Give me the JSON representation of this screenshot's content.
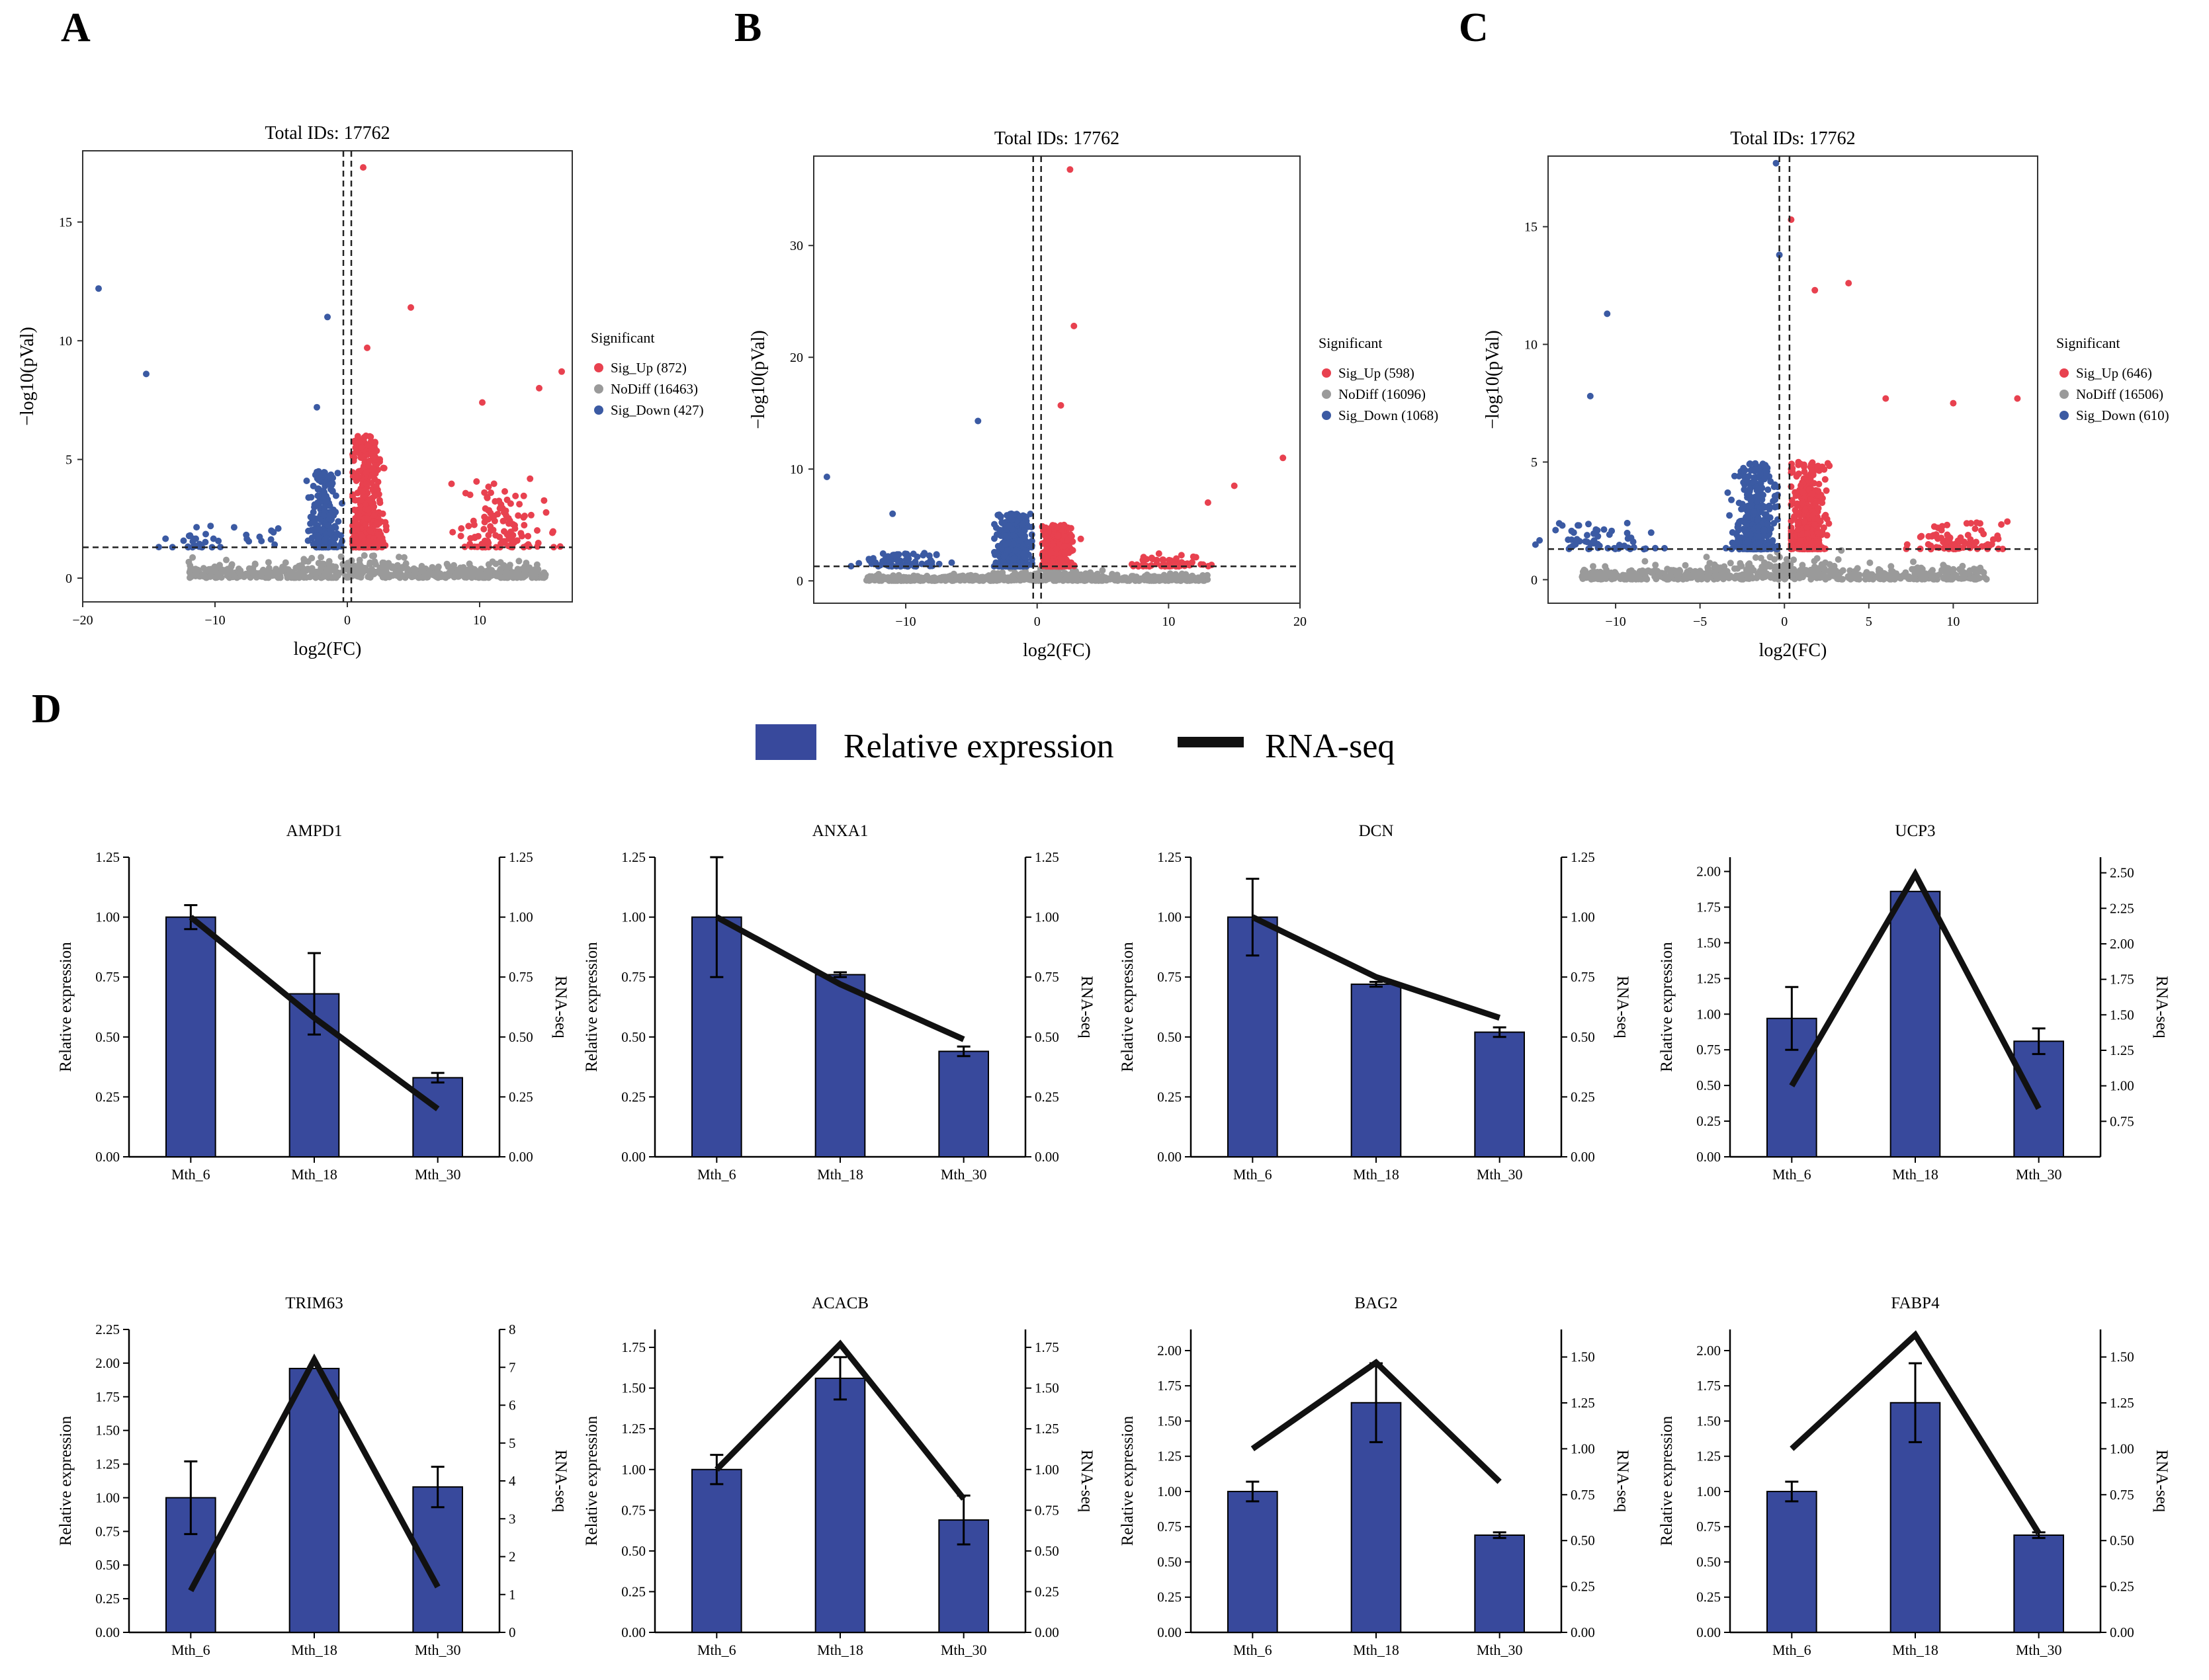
{
  "colors": {
    "sig_up": "#e8414f",
    "nodiff": "#9a9a9a",
    "sig_down": "#3b5aa3",
    "bar": "#38499c",
    "line": "#111111"
  },
  "panel_letters": [
    "A",
    "B",
    "C",
    "D"
  ],
  "legend_d": {
    "bar_label": "Relative expression",
    "line_label": "RNA-seq"
  },
  "chart_data": [
    {
      "id": "A",
      "type": "scatter",
      "title": "Total IDs: 17762",
      "xlabel": "log2(FC)",
      "ylabel": "−log10(pVal)",
      "xlim": [
        -20,
        17
      ],
      "ylim": [
        -1,
        18
      ],
      "xticks": [
        -20,
        -10,
        0,
        10
      ],
      "xtick_labels": [
        "−20",
        "−10",
        "0",
        "10"
      ],
      "yticks": [
        0,
        5,
        10,
        15
      ],
      "vlines": [
        -0.3,
        0.3
      ],
      "hline": 1.3,
      "legend_title": "Significant",
      "legend": [
        {
          "label": "Sig_Up (872)",
          "group": "up"
        },
        {
          "label": "NoDiff (16463)",
          "group": "nodiff"
        },
        {
          "label": "Sig_Down (427)",
          "group": "down"
        }
      ],
      "clusters": {
        "up": [
          [
            1.5,
            6,
            520
          ],
          [
            11,
            4.2,
            100
          ],
          [
            14,
            4,
            20
          ]
        ],
        "down": [
          [
            -1.8,
            4.5,
            250
          ],
          [
            -12,
            2.2,
            25
          ],
          [
            -7,
            2.5,
            12
          ]
        ],
        "nodiff_x": [
          -12,
          15
        ]
      },
      "outliers": [
        {
          "x": 1.2,
          "y": 17.3,
          "g": "up"
        },
        {
          "x": 4.8,
          "y": 11.4,
          "g": "up"
        },
        {
          "x": 1.5,
          "y": 9.7,
          "g": "up"
        },
        {
          "x": 16.2,
          "y": 8.7,
          "g": "up"
        },
        {
          "x": 14.5,
          "y": 8.0,
          "g": "up"
        },
        {
          "x": 10.2,
          "y": 7.4,
          "g": "up"
        },
        {
          "x": -18.8,
          "y": 12.2,
          "g": "down"
        },
        {
          "x": -15.2,
          "y": 8.6,
          "g": "down"
        },
        {
          "x": -1.5,
          "y": 11.0,
          "g": "down"
        },
        {
          "x": -2.3,
          "y": 7.2,
          "g": "down"
        }
      ]
    },
    {
      "id": "B",
      "type": "scatter",
      "title": "Total IDs: 17762",
      "xlabel": "log2(FC)",
      "ylabel": "−log10(pVal)",
      "xlim": [
        -17,
        20
      ],
      "ylim": [
        -2,
        38
      ],
      "xticks": [
        -10,
        0,
        10,
        20
      ],
      "xtick_labels": [
        "−10",
        "0",
        "10",
        "20"
      ],
      "yticks": [
        0,
        10,
        20,
        30
      ],
      "vlines": [
        -0.3,
        0.3
      ],
      "hline": 1.3,
      "legend_title": "Significant",
      "legend": [
        {
          "label": "Sig_Up (598)",
          "group": "up"
        },
        {
          "label": "NoDiff (16096)",
          "group": "nodiff"
        },
        {
          "label": "Sig_Down (1068)",
          "group": "down"
        }
      ],
      "clusters": {
        "up": [
          [
            1.5,
            5,
            350
          ],
          [
            10,
            2.5,
            60
          ]
        ],
        "down": [
          [
            -1.8,
            6,
            620
          ],
          [
            -10,
            2.5,
            80
          ]
        ],
        "nodiff_x": [
          -13,
          13
        ]
      },
      "outliers": [
        {
          "x": 2.5,
          "y": 36.8,
          "g": "up"
        },
        {
          "x": 2.8,
          "y": 22.8,
          "g": "up"
        },
        {
          "x": 1.8,
          "y": 15.7,
          "g": "up"
        },
        {
          "x": 18.7,
          "y": 11.0,
          "g": "up"
        },
        {
          "x": 15.0,
          "y": 8.5,
          "g": "up"
        },
        {
          "x": 13.0,
          "y": 7.0,
          "g": "up"
        },
        {
          "x": -4.5,
          "y": 14.3,
          "g": "down"
        },
        {
          "x": -16.0,
          "y": 9.3,
          "g": "down"
        },
        {
          "x": -11.0,
          "y": 6.0,
          "g": "down"
        }
      ]
    },
    {
      "id": "C",
      "type": "scatter",
      "title": "Total IDs: 17762",
      "xlabel": "log2(FC)",
      "ylabel": "−log10(pVal)",
      "xlim": [
        -14,
        15
      ],
      "ylim": [
        -1,
        18
      ],
      "xticks": [
        -10,
        -5,
        0,
        5,
        10
      ],
      "xtick_labels": [
        "−10",
        "−5",
        "0",
        "5",
        "10"
      ],
      "yticks": [
        0,
        5,
        10,
        15
      ],
      "vlines": [
        -0.3,
        0.3
      ],
      "hline": 1.3,
      "legend_title": "Significant",
      "legend": [
        {
          "label": "Sig_Up (646)",
          "group": "up"
        },
        {
          "label": "NoDiff (16506)",
          "group": "nodiff"
        },
        {
          "label": "Sig_Down (610)",
          "group": "down"
        }
      ],
      "clusters": {
        "up": [
          [
            1.3,
            5,
            380
          ],
          [
            10.5,
            2.5,
            80
          ]
        ],
        "down": [
          [
            -1.8,
            5,
            380
          ],
          [
            -11,
            2.5,
            60
          ]
        ],
        "nodiff_x": [
          -12,
          12
        ]
      },
      "outliers": [
        {
          "x": -0.5,
          "y": 17.7,
          "g": "down"
        },
        {
          "x": -0.3,
          "y": 13.8,
          "g": "down"
        },
        {
          "x": -10.5,
          "y": 11.3,
          "g": "down"
        },
        {
          "x": -11.5,
          "y": 7.8,
          "g": "down"
        },
        {
          "x": 0.4,
          "y": 15.3,
          "g": "up"
        },
        {
          "x": 1.8,
          "y": 12.3,
          "g": "up"
        },
        {
          "x": 3.8,
          "y": 12.6,
          "g": "up"
        },
        {
          "x": 6.0,
          "y": 7.7,
          "g": "up"
        },
        {
          "x": 13.8,
          "y": 7.7,
          "g": "up"
        },
        {
          "x": 10.0,
          "y": 7.5,
          "g": "up"
        }
      ]
    },
    {
      "id": "AMPD1",
      "type": "bar+line",
      "title": "AMPD1",
      "categories": [
        "Mth_6",
        "Mth_18",
        "Mth_30"
      ],
      "bars": [
        1.0,
        0.68,
        0.33
      ],
      "errors": [
        0.05,
        0.17,
        0.02
      ],
      "line": [
        1.0,
        0.58,
        0.2
      ],
      "ylabel": "Relative expression",
      "ylabel2": "RNA-seq",
      "y1lim": [
        0,
        1.25
      ],
      "y1ticks": [
        "0.00",
        "0.25",
        "0.50",
        "0.75",
        "1.00",
        "1.25"
      ],
      "y2lim": [
        0,
        1.25
      ],
      "y2ticks": [
        "0.00",
        "0.25",
        "0.50",
        "0.75",
        "1.00",
        "1.25"
      ]
    },
    {
      "id": "ANXA1",
      "type": "bar+line",
      "title": "ANXA1",
      "categories": [
        "Mth_6",
        "Mth_18",
        "Mth_30"
      ],
      "bars": [
        1.0,
        0.76,
        0.44
      ],
      "errors": [
        0.25,
        0.01,
        0.02
      ],
      "line": [
        1.0,
        0.72,
        0.49
      ],
      "ylabel": "Relative expression",
      "ylabel2": "RNA-seq",
      "y1lim": [
        0,
        1.25
      ],
      "y1ticks": [
        "0.00",
        "0.25",
        "0.50",
        "0.75",
        "1.00",
        "1.25"
      ],
      "y2lim": [
        0,
        1.25
      ],
      "y2ticks": [
        "0.00",
        "0.25",
        "0.50",
        "0.75",
        "1.00",
        "1.25"
      ]
    },
    {
      "id": "DCN",
      "type": "bar+line",
      "title": "DCN",
      "categories": [
        "Mth_6",
        "Mth_18",
        "Mth_30"
      ],
      "bars": [
        1.0,
        0.72,
        0.52
      ],
      "errors": [
        0.16,
        0.01,
        0.02
      ],
      "line": [
        1.0,
        0.75,
        0.58
      ],
      "ylabel": "Relative expression",
      "ylabel2": "RNA-seq",
      "y1lim": [
        0,
        1.25
      ],
      "y1ticks": [
        "0.00",
        "0.25",
        "0.50",
        "0.75",
        "1.00",
        "1.25"
      ],
      "y2lim": [
        0,
        1.25
      ],
      "y2ticks": [
        "0.00",
        "0.25",
        "0.50",
        "0.75",
        "1.00",
        "1.25"
      ]
    },
    {
      "id": "UCP3",
      "type": "bar+line",
      "title": "UCP3",
      "categories": [
        "Mth_6",
        "Mth_18",
        "Mth_30"
      ],
      "bars": [
        0.97,
        1.86,
        0.81
      ],
      "errors": [
        0.22,
        0.0,
        0.09
      ],
      "line": [
        1.0,
        2.49,
        0.84
      ],
      "ylabel": "Relative expression",
      "ylabel2": "RNA-seq",
      "y1lim": [
        0,
        2.1
      ],
      "y1ticks": [
        "0.00",
        "0.25",
        "0.50",
        "0.75",
        "1.00",
        "1.25",
        "1.50",
        "1.75",
        "2.00"
      ],
      "y2lim": [
        0.5,
        2.61
      ],
      "y2ticks": [
        "0.75",
        "1.00",
        "1.25",
        "1.50",
        "1.75",
        "2.00",
        "2.25",
        "2.50"
      ]
    },
    {
      "id": "TRIM63",
      "type": "bar+line",
      "title": "TRIM63",
      "categories": [
        "Mth_6",
        "Mth_18",
        "Mth_30"
      ],
      "bars": [
        1.0,
        1.96,
        1.08
      ],
      "errors": [
        0.27,
        0.0,
        0.15
      ],
      "line": [
        1.1,
        7.2,
        1.2
      ],
      "ylabel": "Relative expression",
      "ylabel2": "RNA-seq",
      "y1lim": [
        0,
        2.25
      ],
      "y1ticks": [
        "0.00",
        "0.25",
        "0.50",
        "0.75",
        "1.00",
        "1.25",
        "1.50",
        "1.75",
        "2.00",
        "2.25"
      ],
      "y2lim": [
        0,
        8
      ],
      "y2ticks": [
        "0",
        "1",
        "2",
        "3",
        "4",
        "5",
        "6",
        "7",
        "8"
      ]
    },
    {
      "id": "ACACB",
      "type": "bar+line",
      "title": "ACACB",
      "categories": [
        "Mth_6",
        "Mth_18",
        "Mth_30"
      ],
      "bars": [
        1.0,
        1.56,
        0.69
      ],
      "errors": [
        0.09,
        0.13,
        0.15
      ],
      "line": [
        1.0,
        1.77,
        0.82
      ],
      "ylabel": "Relative expression",
      "ylabel2": "RNA-seq",
      "y1lim": [
        0,
        1.86
      ],
      "y1ticks": [
        "0.00",
        "0.25",
        "0.50",
        "0.75",
        "1.00",
        "1.25",
        "1.50",
        "1.75"
      ],
      "y2lim": [
        0,
        1.86
      ],
      "y2ticks": [
        "0.00",
        "0.25",
        "0.50",
        "0.75",
        "1.00",
        "1.25",
        "1.50",
        "1.75"
      ]
    },
    {
      "id": "BAG2",
      "type": "bar+line",
      "title": "BAG2",
      "categories": [
        "Mth_6",
        "Mth_18",
        "Mth_30"
      ],
      "bars": [
        1.0,
        1.63,
        0.69
      ],
      "errors": [
        0.07,
        0.28,
        0.02
      ],
      "line": [
        1.0,
        1.47,
        0.82
      ],
      "ylabel": "Relative expression",
      "ylabel2": "RNA-seq",
      "y1lim": [
        0,
        2.15
      ],
      "y1ticks": [
        "0.00",
        "0.25",
        "0.50",
        "0.75",
        "1.00",
        "1.25",
        "1.50",
        "1.75",
        "2.00"
      ],
      "y2lim": [
        0,
        1.65
      ],
      "y2ticks": [
        "0.00",
        "0.25",
        "0.50",
        "0.75",
        "1.00",
        "1.25",
        "1.50"
      ]
    },
    {
      "id": "FABP4",
      "type": "bar+line",
      "title": "FABP4",
      "categories": [
        "Mth_6",
        "Mth_18",
        "Mth_30"
      ],
      "bars": [
        1.0,
        1.63,
        0.69
      ],
      "errors": [
        0.07,
        0.28,
        0.02
      ],
      "line": [
        1.0,
        1.62,
        0.54
      ],
      "ylabel": "Relative expression",
      "ylabel2": "RNA-seq",
      "y1lim": [
        0,
        2.15
      ],
      "y1ticks": [
        "0.00",
        "0.25",
        "0.50",
        "0.75",
        "1.00",
        "1.25",
        "1.50",
        "1.75",
        "2.00"
      ],
      "y2lim": [
        0,
        1.65
      ],
      "y2ticks": [
        "0.00",
        "0.25",
        "0.50",
        "0.75",
        "1.00",
        "1.25",
        "1.50"
      ]
    }
  ]
}
